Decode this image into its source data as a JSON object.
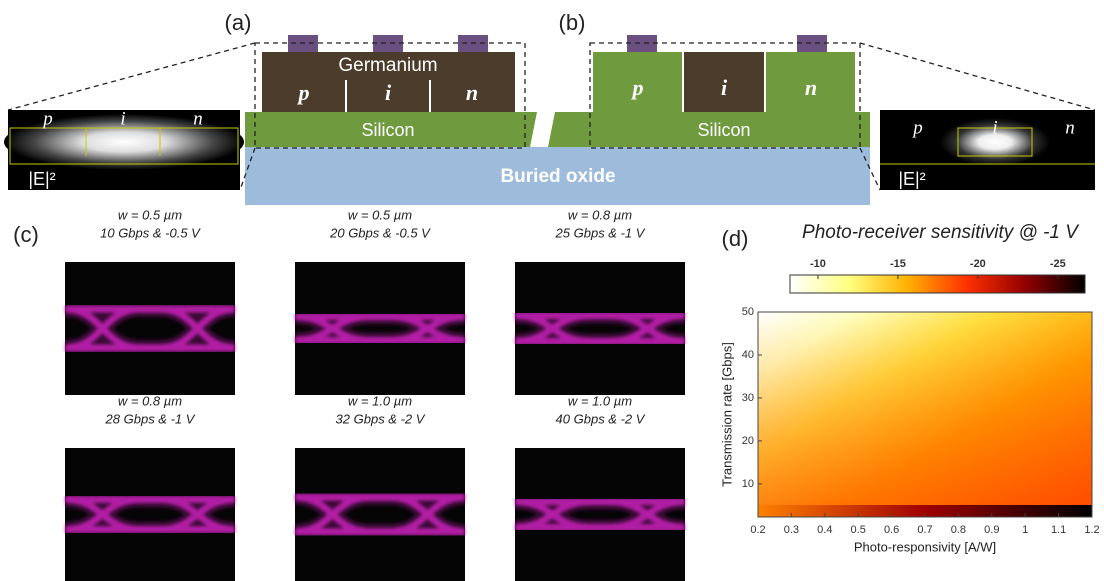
{
  "panel_a": {
    "label": "(a)",
    "germanium": "Germanium",
    "regions": [
      "p",
      "i",
      "n"
    ],
    "silicon": "Silicon",
    "oxide": "Buried oxide",
    "mode_regions": [
      "p",
      "i",
      "n"
    ],
    "field": "|E|²"
  },
  "panel_b": {
    "label": "(b)",
    "regions": [
      "p",
      "i",
      "n"
    ],
    "silicon": "Silicon",
    "mode_regions": [
      "p",
      "i",
      "n"
    ],
    "field": "|E|²"
  },
  "panel_c": {
    "label": "(c)",
    "eyes": [
      {
        "width": "w = 0.5 µm",
        "condition": "10 Gbps & -0.5 V"
      },
      {
        "width": "w = 0.5 µm",
        "condition": "20 Gbps & -0.5 V"
      },
      {
        "width": "w = 0.8 µm",
        "condition": "25 Gbps & -1 V"
      },
      {
        "width": "w = 0.8 µm",
        "condition": "28 Gbps & -1 V"
      },
      {
        "width": "w = 1.0 µm",
        "condition": "32 Gbps & -2 V"
      },
      {
        "width": "w = 1.0 µm",
        "condition": "40 Gbps & -2 V"
      }
    ]
  },
  "panel_d": {
    "label": "(d)",
    "title": "Photo-receiver sensitivity @ -1 V",
    "colorbar_lim": [
      -8.25,
      -26.7
    ],
    "colorbar_ticks": [
      -10,
      -15,
      -20,
      -25
    ],
    "xlabel": "Photo-responsivity [A/W]",
    "ylabel": "Transmission rate [Gbps]",
    "xlim": [
      0.2,
      1.2
    ],
    "xticks": [
      0.2,
      0.3,
      0.4,
      0.5,
      0.6,
      0.7,
      0.8,
      0.9,
      1,
      1.1,
      1.2
    ],
    "ylim": [
      2.3,
      50
    ],
    "yticks": [
      10,
      20,
      30,
      40,
      50
    ]
  }
}
